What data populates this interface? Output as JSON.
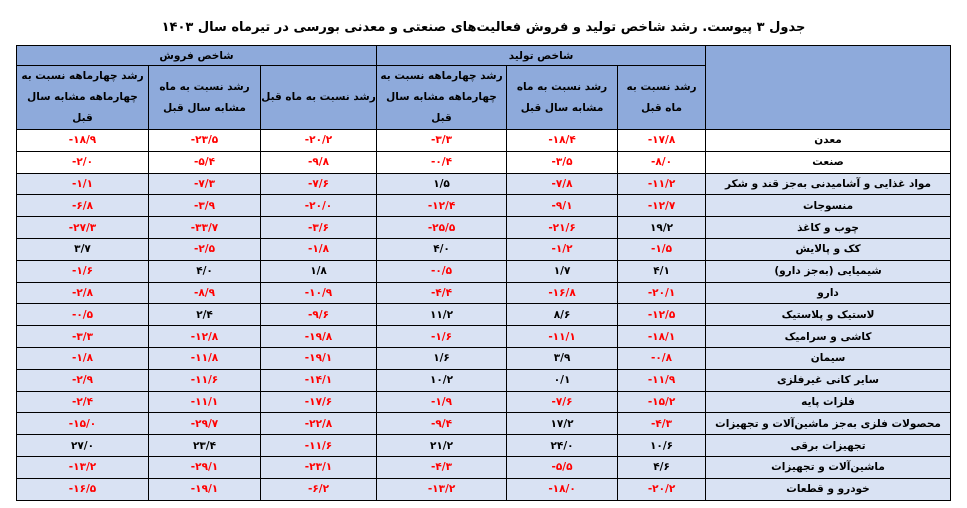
{
  "title": "جدول ۳ پیوست. رشد شاخص تولید و فروش فعالیت‌های صنعتی و معدنی بورسی در تیرماه سال ۱۴۰۳",
  "groups": {
    "production": "شاخص تولید",
    "sales": "شاخص فروش"
  },
  "columns": {
    "prod_mom": "رشد نسبت به ماه قبل",
    "prod_yoy": "رشد نسبت به ماه مشابه سال قبل",
    "prod_cum": "رشد چهارماهه نسبت به چهارماهه مشابه سال قبل",
    "sales_mom": "رشد نسبت به ماه قبل",
    "sales_yoy": "رشد نسبت به ماه مشابه سال قبل",
    "sales_cum": "رشد چهارماهه نسبت به چهارماهه مشابه سال قبل"
  },
  "colors": {
    "header_bg": "#8eaadb",
    "row_bg": "#d9e2f3",
    "negative": "#ff0000"
  },
  "rows": [
    {
      "name": "معدن",
      "v": [
        "-۱۷/۸",
        "-۱۸/۴",
        "-۳/۳",
        "-۲۰/۲",
        "-۲۳/۵",
        "-۱۸/۹"
      ],
      "bg": "white"
    },
    {
      "name": "صنعت",
      "v": [
        "-۸/۰",
        "-۳/۵",
        "-۰/۴",
        "-۹/۸",
        "-۵/۴",
        "-۲/۰"
      ],
      "bg": "white"
    },
    {
      "name": "مواد غذایی و آشامیدنی به‌جز قند و شکر",
      "v": [
        "-۱۱/۲",
        "-۷/۸",
        "۱/۵",
        "-۷/۶",
        "-۷/۳",
        "-۱/۱"
      ],
      "bg": "blue"
    },
    {
      "name": "منسوجات",
      "v": [
        "-۱۲/۷",
        "-۹/۱",
        "-۱۲/۴",
        "-۲۰/۰",
        "-۳/۹",
        "-۶/۸"
      ],
      "bg": "blue"
    },
    {
      "name": "چوب و کاغذ",
      "v": [
        "۱۹/۲",
        "-۲۱/۶",
        "-۲۵/۵",
        "-۳/۶",
        "-۳۳/۷",
        "-۲۷/۳"
      ],
      "bg": "blue"
    },
    {
      "name": "کک و پالایش",
      "v": [
        "-۱/۵",
        "-۱/۲",
        "۴/۰",
        "-۱/۸",
        "-۲/۵",
        "۳/۷"
      ],
      "bg": "blue"
    },
    {
      "name": "شیمیایی (به‌جز دارو)",
      "v": [
        "۴/۱",
        "۱/۷",
        "-۰/۵",
        "۱/۸",
        "۴/۰",
        "-۱/۶"
      ],
      "bg": "blue"
    },
    {
      "name": "دارو",
      "v": [
        "-۲۰/۱",
        "-۱۶/۸",
        "-۴/۴",
        "-۱۰/۹",
        "-۸/۹",
        "-۲/۸"
      ],
      "bg": "blue"
    },
    {
      "name": "لاستیک و پلاستیک",
      "v": [
        "-۱۲/۵",
        "۸/۶",
        "۱۱/۲",
        "-۹/۶",
        "۲/۴",
        "-۰/۵"
      ],
      "bg": "blue"
    },
    {
      "name": "کاشی و سرامیک",
      "v": [
        "-۱۸/۱",
        "-۱۱/۱",
        "-۱/۶",
        "-۱۹/۸",
        "-۱۲/۸",
        "-۳/۳"
      ],
      "bg": "blue"
    },
    {
      "name": "سیمان",
      "v": [
        "-۰/۸",
        "۳/۹",
        "۱/۶",
        "-۱۹/۱",
        "-۱۱/۸",
        "-۱/۸"
      ],
      "bg": "blue"
    },
    {
      "name": "سایر کانی غیرفلزی",
      "v": [
        "-۱۱/۹",
        "۰/۱",
        "۱۰/۲",
        "-۱۴/۱",
        "-۱۱/۶",
        "-۲/۹"
      ],
      "bg": "blue"
    },
    {
      "name": "فلزات پایه",
      "v": [
        "-۱۵/۲",
        "-۷/۶",
        "-۱/۹",
        "-۱۷/۶",
        "-۱۱/۱",
        "-۲/۴"
      ],
      "bg": "blue"
    },
    {
      "name": "محصولات فلزی به‌جز ماشین‌آلات و تجهیزات",
      "v": [
        "-۴/۳",
        "۱۷/۲",
        "-۹/۴",
        "-۲۲/۸",
        "-۲۹/۷",
        "-۱۵/۰"
      ],
      "bg": "blue"
    },
    {
      "name": "تجهیزات برقی",
      "v": [
        "۱۰/۶",
        "۲۴/۰",
        "۲۱/۲",
        "-۱۱/۶",
        "۲۳/۴",
        "۲۷/۰"
      ],
      "bg": "blue"
    },
    {
      "name": "ماشین‌آلات و تجهیزات",
      "v": [
        "۴/۶",
        "-۵/۵",
        "-۴/۳",
        "-۲۳/۱",
        "-۲۹/۱",
        "-۱۳/۲"
      ],
      "bg": "blue"
    },
    {
      "name": "خودرو و قطعات",
      "v": [
        "-۲۰/۲",
        "-۱۸/۰",
        "-۱۳/۲",
        "-۶/۲",
        "-۱۹/۱",
        "-۱۶/۵"
      ],
      "bg": "blue"
    }
  ]
}
